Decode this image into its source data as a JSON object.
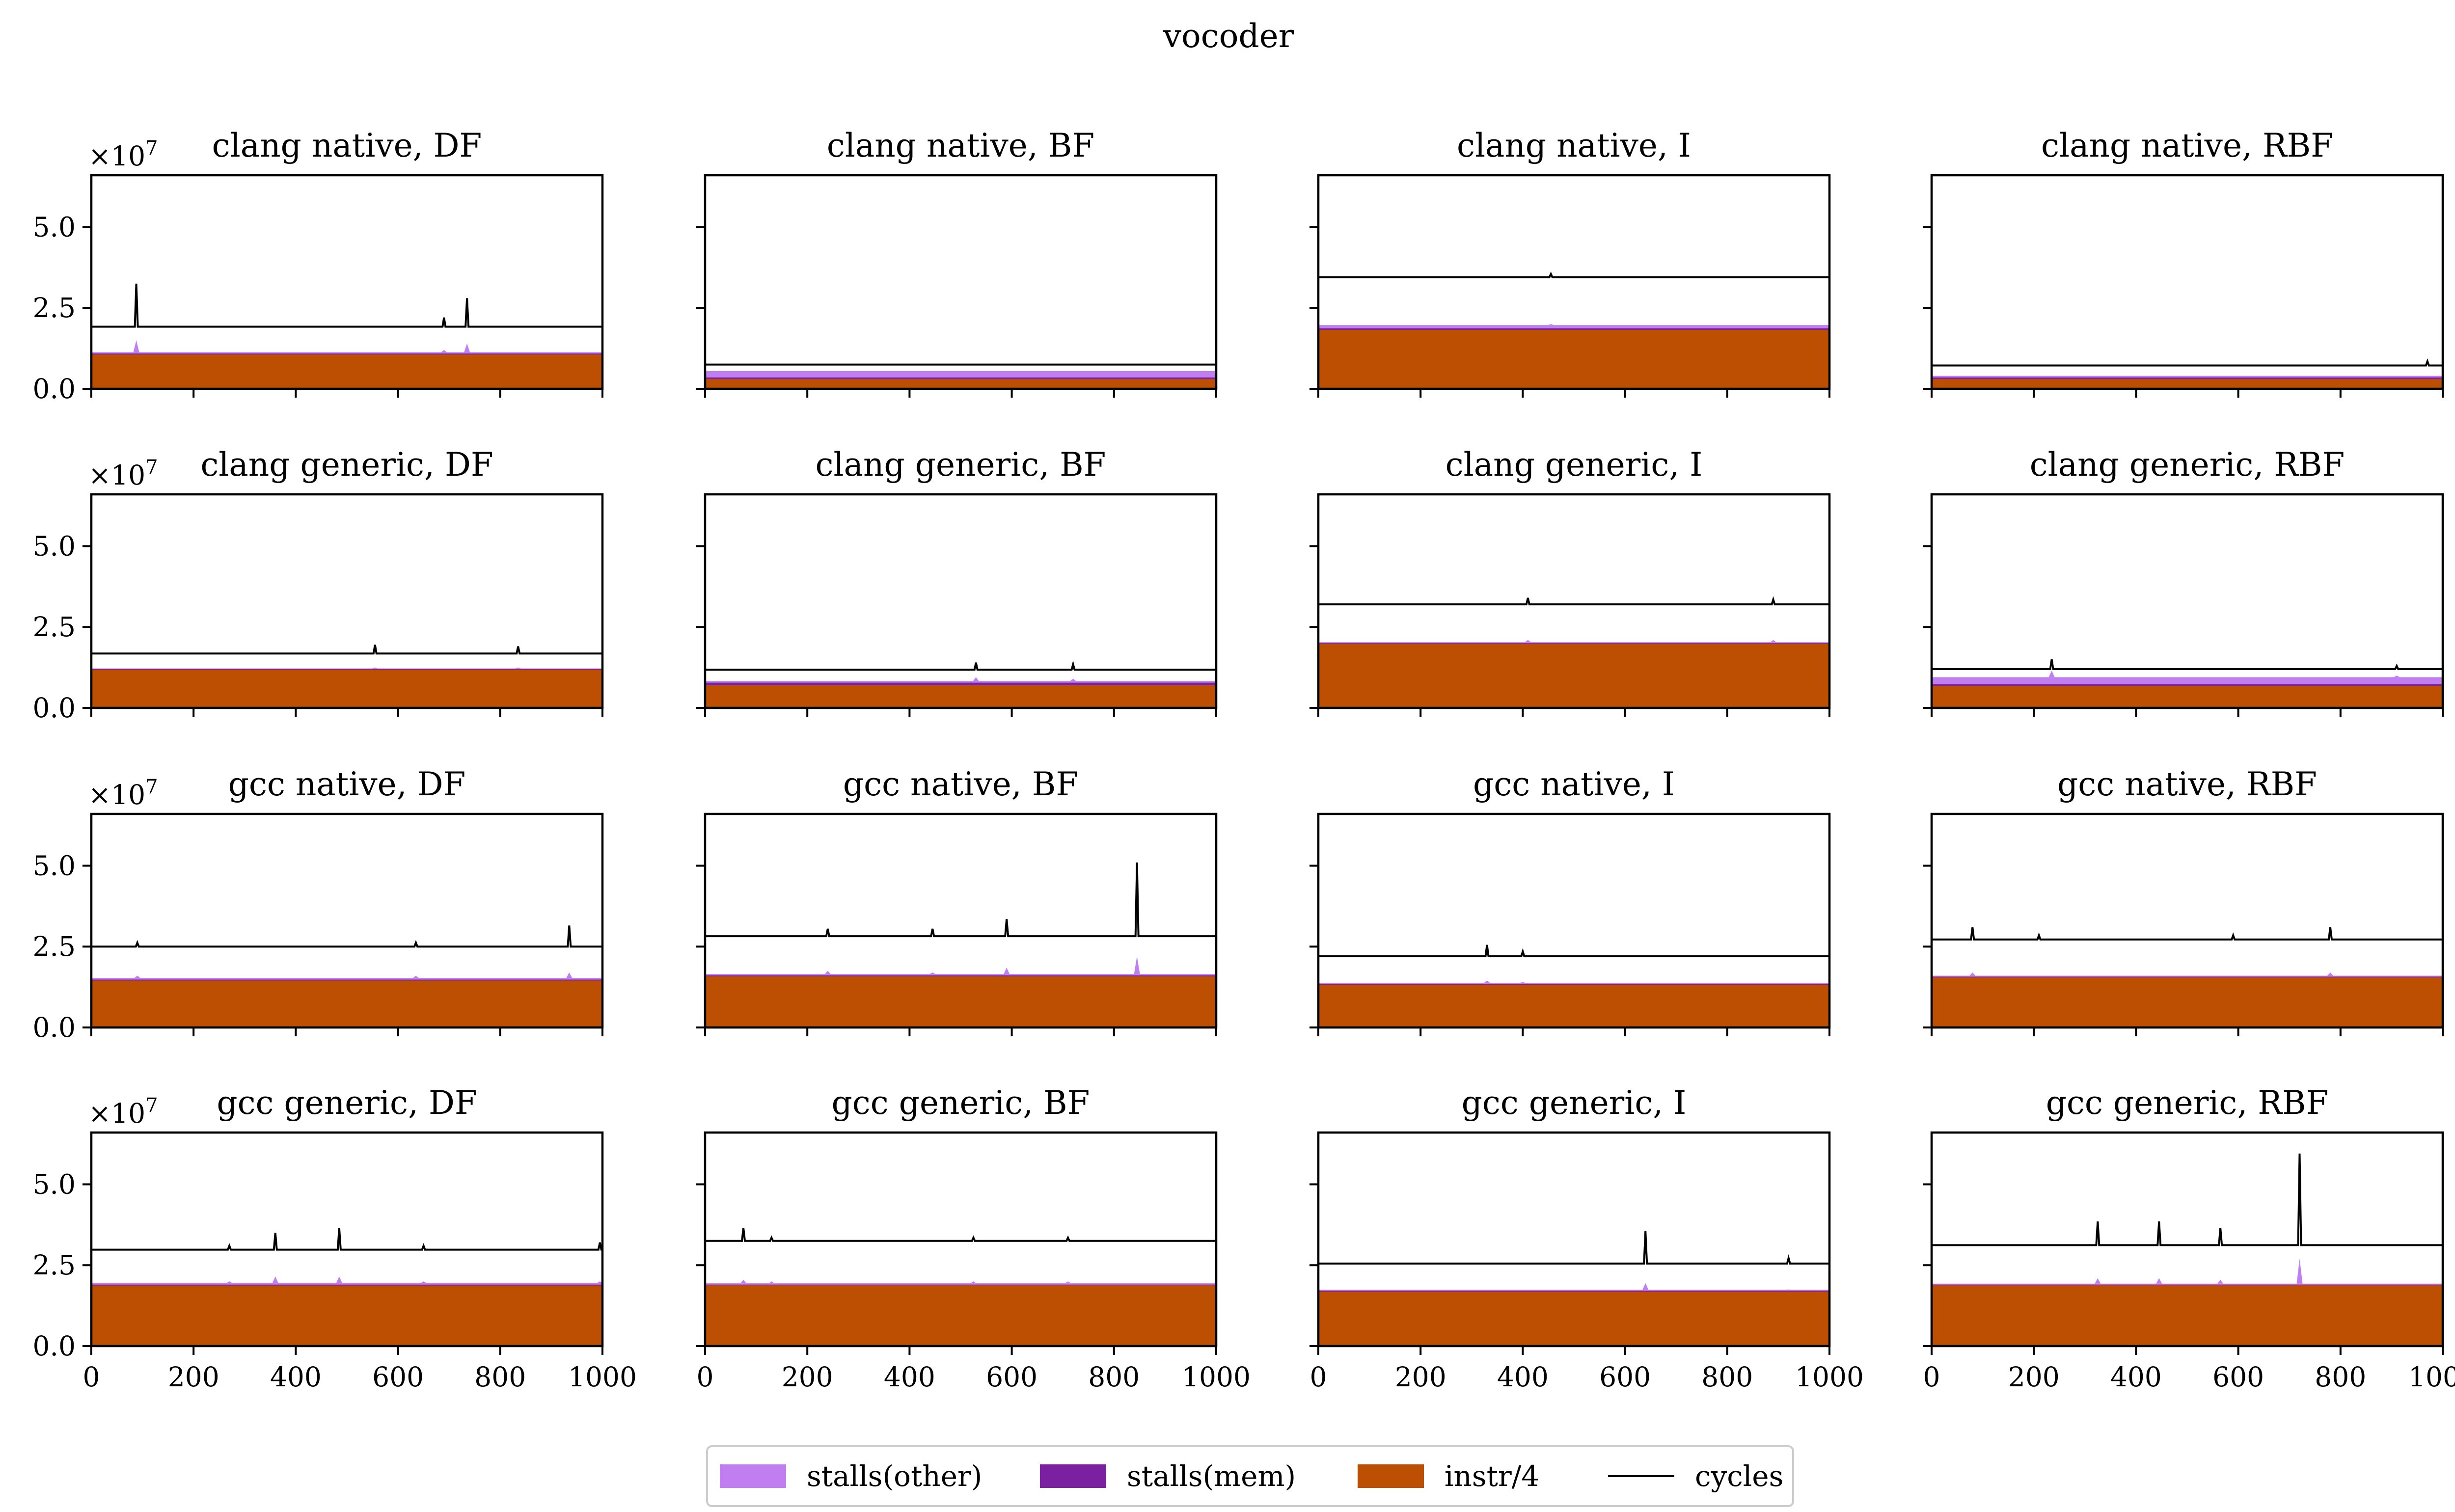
{
  "figure": {
    "title": "vocoder",
    "exponent_label": "×10",
    "exponent_power": "7"
  },
  "colors": {
    "stalls_other": "#c07ef0",
    "stalls_mem": "#7a20a0",
    "instr": "#bd4f02",
    "cycles": "#000000",
    "axes": "#000000"
  },
  "legend": {
    "placement": "bottom-center",
    "items": [
      {
        "label": "stalls(other)",
        "kind": "patch",
        "color_key": "stalls_other"
      },
      {
        "label": "stalls(mem)",
        "kind": "patch",
        "color_key": "stalls_mem"
      },
      {
        "label": "instr/4",
        "kind": "patch",
        "color_key": "instr"
      },
      {
        "label": "cycles",
        "kind": "line",
        "color_key": "cycles"
      }
    ]
  },
  "chart_data": [
    {
      "type": "area",
      "title": "clang native, DF",
      "row": 0,
      "col": 0,
      "xlim": [
        0,
        1000
      ],
      "ylim": [
        0,
        66000000.0
      ],
      "xticks": [
        0,
        200,
        400,
        600,
        800,
        1000
      ],
      "yticks": [
        0,
        25000000.0,
        50000000.0
      ],
      "ytick_labels": [
        "0.0",
        "2.5",
        "5.0"
      ],
      "series": {
        "instr/4": 10600000.0,
        "stalls(mem)": 300000.0,
        "stalls(other)": 400000.0,
        "cycles": 19200000.0
      },
      "spikes": [
        {
          "x": 88,
          "cycles": 32500000.0,
          "stalls": 15000000.0
        },
        {
          "x": 690,
          "cycles": 22000000.0,
          "stalls": 12000000.0
        },
        {
          "x": 735,
          "cycles": 28000000.0,
          "stalls": 14000000.0
        }
      ]
    },
    {
      "type": "area",
      "title": "clang native, BF",
      "row": 0,
      "col": 1,
      "xlim": [
        0,
        1000
      ],
      "ylim": [
        0,
        66000000.0
      ],
      "xticks": [
        0,
        200,
        400,
        600,
        800,
        1000
      ],
      "yticks": [
        0,
        25000000.0,
        50000000.0
      ],
      "ytick_labels": [
        "",
        "",
        ""
      ],
      "series": {
        "instr/4": 3000000.0,
        "stalls(mem)": 500000.0,
        "stalls(other)": 2000000.0,
        "cycles": 7500000.0
      },
      "spikes": []
    },
    {
      "type": "area",
      "title": "clang native, I",
      "row": 0,
      "col": 2,
      "xlim": [
        0,
        1000
      ],
      "ylim": [
        0,
        66000000.0
      ],
      "xticks": [
        0,
        200,
        400,
        600,
        800,
        1000
      ],
      "yticks": [
        0,
        25000000.0,
        50000000.0
      ],
      "ytick_labels": [
        "",
        "",
        ""
      ],
      "series": {
        "instr/4": 18200000.0,
        "stalls(mem)": 500000.0,
        "stalls(other)": 1000000.0,
        "cycles": 34500000.0
      },
      "spikes": [
        {
          "x": 455,
          "cycles": 35500000.0,
          "stalls": 20000000.0
        }
      ]
    },
    {
      "type": "area",
      "title": "clang native, RBF",
      "row": 0,
      "col": 3,
      "xlim": [
        0,
        1000
      ],
      "ylim": [
        0,
        66000000.0
      ],
      "xticks": [
        0,
        200,
        400,
        600,
        800,
        1000
      ],
      "yticks": [
        0,
        25000000.0,
        50000000.0
      ],
      "ytick_labels": [
        "",
        "",
        ""
      ],
      "series": {
        "instr/4": 3000000.0,
        "stalls(mem)": 500000.0,
        "stalls(other)": 500000.0,
        "cycles": 7200000.0
      },
      "spikes": [
        {
          "x": 970,
          "cycles": 8500000.0,
          "stalls": 4000000.0
        }
      ]
    },
    {
      "type": "area",
      "title": "clang generic, DF",
      "row": 1,
      "col": 0,
      "xlim": [
        0,
        1000
      ],
      "ylim": [
        0,
        66000000.0
      ],
      "xticks": [
        0,
        200,
        400,
        600,
        800,
        1000
      ],
      "yticks": [
        0,
        25000000.0,
        50000000.0
      ],
      "ytick_labels": [
        "0.0",
        "2.5",
        "5.0"
      ],
      "series": {
        "instr/4": 11800000.0,
        "stalls(mem)": 200000.0,
        "stalls(other)": 200000.0,
        "cycles": 16800000.0
      },
      "spikes": [
        {
          "x": 555,
          "cycles": 19500000.0,
          "stalls": 12500000.0
        },
        {
          "x": 835,
          "cycles": 19000000.0,
          "stalls": 12500000.0
        }
      ]
    },
    {
      "type": "area",
      "title": "clang generic, BF",
      "row": 1,
      "col": 1,
      "xlim": [
        0,
        1000
      ],
      "ylim": [
        0,
        66000000.0
      ],
      "xticks": [
        0,
        200,
        400,
        600,
        800,
        1000
      ],
      "yticks": [
        0,
        25000000.0,
        50000000.0
      ],
      "ytick_labels": [
        "",
        "",
        ""
      ],
      "series": {
        "instr/4": 7000000.0,
        "stalls(mem)": 800000.0,
        "stalls(other)": 500000.0,
        "cycles": 11800000.0
      },
      "spikes": [
        {
          "x": 530,
          "cycles": 14000000.0,
          "stalls": 9500000.0
        },
        {
          "x": 720,
          "cycles": 13500000.0,
          "stalls": 9000000.0
        }
      ]
    },
    {
      "type": "area",
      "title": "clang generic, I",
      "row": 1,
      "col": 2,
      "xlim": [
        0,
        1000
      ],
      "ylim": [
        0,
        66000000.0
      ],
      "xticks": [
        0,
        200,
        400,
        600,
        800,
        1000
      ],
      "yticks": [
        0,
        25000000.0,
        50000000.0
      ],
      "ytick_labels": [
        "",
        "",
        ""
      ],
      "series": {
        "instr/4": 19800000.0,
        "stalls(mem)": 200000.0,
        "stalls(other)": 300000.0,
        "cycles": 32000000.0
      },
      "spikes": [
        {
          "x": 410,
          "cycles": 34000000.0,
          "stalls": 21000000.0
        },
        {
          "x": 890,
          "cycles": 33500000.0,
          "stalls": 21000000.0
        }
      ]
    },
    {
      "type": "area",
      "title": "clang generic, RBF",
      "row": 1,
      "col": 3,
      "xlim": [
        0,
        1000
      ],
      "ylim": [
        0,
        66000000.0
      ],
      "xticks": [
        0,
        200,
        400,
        600,
        800,
        1000
      ],
      "yticks": [
        0,
        25000000.0,
        50000000.0
      ],
      "ytick_labels": [
        "",
        "",
        ""
      ],
      "series": {
        "instr/4": 6800000.0,
        "stalls(mem)": 500000.0,
        "stalls(other)": 2200000.0,
        "cycles": 12000000.0
      },
      "spikes": [
        {
          "x": 235,
          "cycles": 15000000.0,
          "stalls": 11500000.0
        },
        {
          "x": 910,
          "cycles": 13000000.0,
          "stalls": 10000000.0
        }
      ]
    },
    {
      "type": "area",
      "title": "gcc native, DF",
      "row": 2,
      "col": 0,
      "xlim": [
        0,
        1000
      ],
      "ylim": [
        0,
        66000000.0
      ],
      "xticks": [
        0,
        200,
        400,
        600,
        800,
        1000
      ],
      "yticks": [
        0,
        25000000.0,
        50000000.0
      ],
      "ytick_labels": [
        "0.0",
        "2.5",
        "5.0"
      ],
      "series": {
        "instr/4": 14500000.0,
        "stalls(mem)": 300000.0,
        "stalls(other)": 500000.0,
        "cycles": 25000000.0
      },
      "spikes": [
        {
          "x": 90,
          "cycles": 26200000.0,
          "stalls": 16000000.0
        },
        {
          "x": 635,
          "cycles": 26200000.0,
          "stalls": 16000000.0
        },
        {
          "x": 935,
          "cycles": 31500000.0,
          "stalls": 17000000.0
        }
      ]
    },
    {
      "type": "area",
      "title": "gcc native, BF",
      "row": 2,
      "col": 1,
      "xlim": [
        0,
        1000
      ],
      "ylim": [
        0,
        66000000.0
      ],
      "xticks": [
        0,
        200,
        400,
        600,
        800,
        1000
      ],
      "yticks": [
        0,
        25000000.0,
        50000000.0
      ],
      "ytick_labels": [
        "",
        "",
        ""
      ],
      "series": {
        "instr/4": 15800000.0,
        "stalls(mem)": 300000.0,
        "stalls(other)": 400000.0,
        "cycles": 28200000.0
      },
      "spikes": [
        {
          "x": 240,
          "cycles": 30500000.0,
          "stalls": 17500000.0
        },
        {
          "x": 445,
          "cycles": 30500000.0,
          "stalls": 17000000.0
        },
        {
          "x": 590,
          "cycles": 33500000.0,
          "stalls": 18500000.0
        },
        {
          "x": 845,
          "cycles": 51000000.0,
          "stalls": 22000000.0
        }
      ]
    },
    {
      "type": "area",
      "title": "gcc native, I",
      "row": 2,
      "col": 2,
      "xlim": [
        0,
        1000
      ],
      "ylim": [
        0,
        66000000.0
      ],
      "xticks": [
        0,
        200,
        400,
        600,
        800,
        1000
      ],
      "yticks": [
        0,
        25000000.0,
        50000000.0
      ],
      "ytick_labels": [
        "",
        "",
        ""
      ],
      "series": {
        "instr/4": 13200000.0,
        "stalls(mem)": 300000.0,
        "stalls(other)": 300000.0,
        "cycles": 22000000.0
      },
      "spikes": [
        {
          "x": 330,
          "cycles": 25500000.0,
          "stalls": 14500000.0
        },
        {
          "x": 400,
          "cycles": 23500000.0,
          "stalls": 14000000.0
        }
      ]
    },
    {
      "type": "area",
      "title": "gcc native, RBF",
      "row": 2,
      "col": 3,
      "xlim": [
        0,
        1000
      ],
      "ylim": [
        0,
        66000000.0
      ],
      "xticks": [
        0,
        200,
        400,
        600,
        800,
        1000
      ],
      "yticks": [
        0,
        25000000.0,
        50000000.0
      ],
      "ytick_labels": [
        "",
        "",
        ""
      ],
      "series": {
        "instr/4": 15500000.0,
        "stalls(mem)": 200000.0,
        "stalls(other)": 300000.0,
        "cycles": 27200000.0
      },
      "spikes": [
        {
          "x": 80,
          "cycles": 31000000.0,
          "stalls": 17000000.0
        },
        {
          "x": 210,
          "cycles": 28500000.0,
          "stalls": 16000000.0
        },
        {
          "x": 590,
          "cycles": 28500000.0,
          "stalls": 16000000.0
        },
        {
          "x": 780,
          "cycles": 31000000.0,
          "stalls": 17000000.0
        }
      ]
    },
    {
      "type": "area",
      "title": "gcc generic, DF",
      "row": 3,
      "col": 0,
      "xlim": [
        0,
        1000
      ],
      "ylim": [
        0,
        66000000.0
      ],
      "xticks": [
        0,
        200,
        400,
        600,
        800,
        1000
      ],
      "yticks": [
        0,
        25000000.0,
        50000000.0
      ],
      "ytick_labels": [
        "0.0",
        "2.5",
        "5.0"
      ],
      "series": {
        "instr/4": 18700000.0,
        "stalls(mem)": 300000.0,
        "stalls(other)": 500000.0,
        "cycles": 29800000.0
      },
      "spikes": [
        {
          "x": 270,
          "cycles": 31000000.0,
          "stalls": 20000000.0
        },
        {
          "x": 360,
          "cycles": 35000000.0,
          "stalls": 21500000.0
        },
        {
          "x": 485,
          "cycles": 36500000.0,
          "stalls": 21500000.0
        },
        {
          "x": 650,
          "cycles": 31000000.0,
          "stalls": 20000000.0
        },
        {
          "x": 995,
          "cycles": 32000000.0,
          "stalls": 20000000.0
        }
      ]
    },
    {
      "type": "area",
      "title": "gcc generic, BF",
      "row": 3,
      "col": 1,
      "xlim": [
        0,
        1000
      ],
      "ylim": [
        0,
        66000000.0
      ],
      "xticks": [
        0,
        200,
        400,
        600,
        800,
        1000
      ],
      "yticks": [
        0,
        25000000.0,
        50000000.0
      ],
      "ytick_labels": [
        "",
        "",
        ""
      ],
      "series": {
        "instr/4": 18800000.0,
        "stalls(mem)": 200000.0,
        "stalls(other)": 400000.0,
        "cycles": 32500000.0
      },
      "spikes": [
        {
          "x": 75,
          "cycles": 36500000.0,
          "stalls": 20500000.0
        },
        {
          "x": 130,
          "cycles": 33500000.0,
          "stalls": 20000000.0
        },
        {
          "x": 525,
          "cycles": 33500000.0,
          "stalls": 20000000.0
        },
        {
          "x": 710,
          "cycles": 33500000.0,
          "stalls": 20000000.0
        }
      ]
    },
    {
      "type": "area",
      "title": "gcc generic, I",
      "row": 3,
      "col": 2,
      "xlim": [
        0,
        1000
      ],
      "ylim": [
        0,
        66000000.0
      ],
      "xticks": [
        0,
        200,
        400,
        600,
        800,
        1000
      ],
      "yticks": [
        0,
        25000000.0,
        50000000.0
      ],
      "ytick_labels": [
        "",
        "",
        ""
      ],
      "series": {
        "instr/4": 16800000.0,
        "stalls(mem)": 300000.0,
        "stalls(other)": 300000.0,
        "cycles": 25500000.0
      },
      "spikes": [
        {
          "x": 640,
          "cycles": 35500000.0,
          "stalls": 19500000.0
        },
        {
          "x": 920,
          "cycles": 27200000.0,
          "stalls": 17500000.0
        }
      ]
    },
    {
      "type": "area",
      "title": "gcc generic, RBF",
      "row": 3,
      "col": 3,
      "xlim": [
        0,
        1000
      ],
      "ylim": [
        0,
        66000000.0
      ],
      "xticks": [
        0,
        200,
        400,
        600,
        800,
        1000
      ],
      "yticks": [
        0,
        25000000.0,
        50000000.0
      ],
      "ytick_labels": [
        "",
        "",
        ""
      ],
      "series": {
        "instr/4": 18800000.0,
        "stalls(mem)": 200000.0,
        "stalls(other)": 300000.0,
        "cycles": 31200000.0
      },
      "spikes": [
        {
          "x": 325,
          "cycles": 38500000.0,
          "stalls": 21000000.0
        },
        {
          "x": 445,
          "cycles": 38500000.0,
          "stalls": 21000000.0
        },
        {
          "x": 565,
          "cycles": 36500000.0,
          "stalls": 20500000.0
        },
        {
          "x": 720,
          "cycles": 59500000.0,
          "stalls": 27000000.0
        }
      ]
    }
  ]
}
